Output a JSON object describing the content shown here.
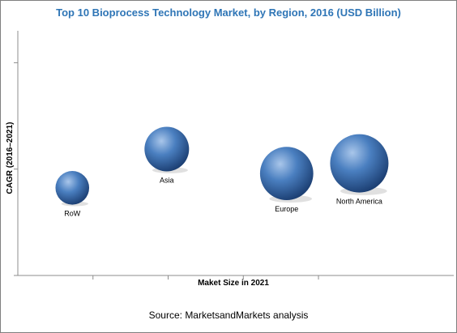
{
  "chart_data": {
    "type": "bubble",
    "title": "Top 10 Bioprocess Technology Market, by Region, 2016 (USD Billion)",
    "xlabel": "Maket Size in 2021",
    "ylabel": "CAGR (2016–2021)",
    "grid": false,
    "points": [
      {
        "label": "RoW",
        "x": 1.5,
        "y": 4.3,
        "size": 2.0
      },
      {
        "label": "Asia",
        "x": 4.1,
        "y": 6.2,
        "size": 3.5
      },
      {
        "label": "Europe",
        "x": 7.4,
        "y": 5.0,
        "size": 5.0
      },
      {
        "label": "North America",
        "x": 9.4,
        "y": 5.5,
        "size": 6.0
      }
    ],
    "xlim": [
      0,
      12
    ],
    "ylim": [
      0,
      12
    ],
    "colors": {
      "bubble_light": "#a9c6ea",
      "bubble_mid": "#4a7fc0",
      "bubble_dark": "#1c3f73",
      "title": "#2e75b6"
    }
  },
  "source": "Source: MarketsandMarkets analysis"
}
